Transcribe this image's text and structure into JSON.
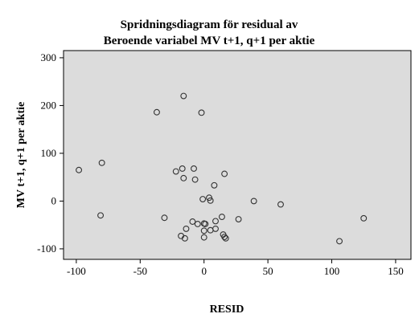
{
  "chart_data": {
    "type": "scatter",
    "title": "Spridningsdiagram för residual av",
    "subtitle": "Beroende variabel MV t+1, q+1 per aktie",
    "xlabel": "RESID",
    "ylabel": "MV t+1, q+1 per aktie",
    "xlim": [
      -110,
      162
    ],
    "ylim": [
      -122,
      315
    ],
    "xticks": [
      -100,
      -50,
      0,
      50,
      100,
      150
    ],
    "yticks": [
      -100,
      0,
      100,
      200,
      300
    ],
    "grid": false,
    "colors": {
      "plot_background": "#dcdcdc",
      "marker_stroke": "#333333",
      "axis": "#000000"
    },
    "points": [
      [
        -16,
        220
      ],
      [
        -37,
        186
      ],
      [
        -2,
        185
      ],
      [
        -98,
        65
      ],
      [
        -80,
        80
      ],
      [
        -81,
        -30
      ],
      [
        -31,
        -35
      ],
      [
        -22,
        62
      ],
      [
        -17,
        68
      ],
      [
        -16,
        48
      ],
      [
        -8,
        68
      ],
      [
        -7,
        45
      ],
      [
        16,
        57
      ],
      [
        8,
        33
      ],
      [
        -1,
        4
      ],
      [
        4,
        7
      ],
      [
        5,
        1
      ],
      [
        39,
        0
      ],
      [
        60,
        -7
      ],
      [
        -9,
        -43
      ],
      [
        -5,
        -48
      ],
      [
        0,
        -47
      ],
      [
        1,
        -48
      ],
      [
        9,
        -42
      ],
      [
        14,
        -33
      ],
      [
        27,
        -38
      ],
      [
        -14,
        -58
      ],
      [
        0,
        -62
      ],
      [
        5,
        -61
      ],
      [
        9,
        -58
      ],
      [
        -18,
        -73
      ],
      [
        -15,
        -78
      ],
      [
        0,
        -76
      ],
      [
        15,
        -70
      ],
      [
        16,
        -75
      ],
      [
        17,
        -78
      ],
      [
        106,
        -84
      ],
      [
        125,
        -36
      ]
    ]
  }
}
